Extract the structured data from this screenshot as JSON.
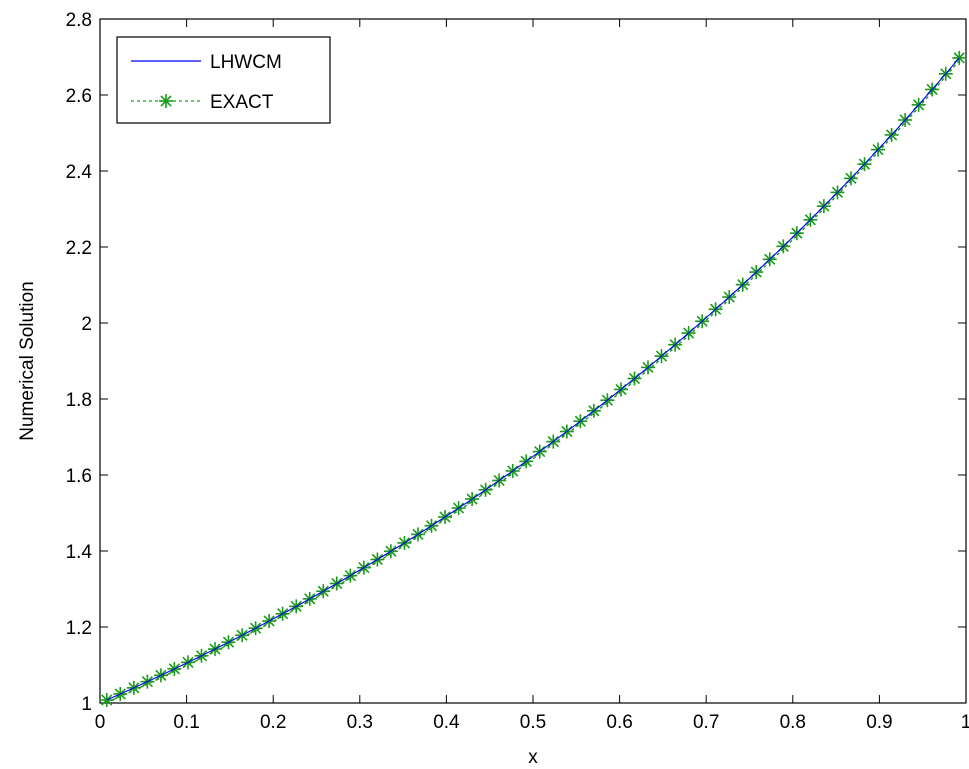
{
  "chart_data": {
    "type": "line",
    "xlabel": "x",
    "ylabel": "Numerical Solution",
    "xlim": [
      0,
      1
    ],
    "ylim": [
      1,
      2.8
    ],
    "xticks": [
      0,
      0.1,
      0.2,
      0.3,
      0.4,
      0.5,
      0.6,
      0.7,
      0.8,
      0.9,
      1
    ],
    "xtick_labels": [
      "0",
      "0.1",
      "0.2",
      "0.3",
      "0.4",
      "0.5",
      "0.6",
      "0.7",
      "0.8",
      "0.9",
      "1"
    ],
    "yticks": [
      1,
      1.2,
      1.4,
      1.6,
      1.8,
      2,
      2.2,
      2.4,
      2.6,
      2.8
    ],
    "ytick_labels": [
      "1",
      "1.2",
      "1.4",
      "1.6",
      "1.8",
      "2",
      "2.2",
      "2.4",
      "2.6",
      "2.8"
    ],
    "grid": false,
    "legend_position": "top-left",
    "series": [
      {
        "name": "LHWCM",
        "style": "line",
        "color": "#0000ff",
        "x": [
          0.0078,
          0.0234,
          0.0391,
          0.0547,
          0.0703,
          0.0859,
          0.1016,
          0.1172,
          0.1328,
          0.1484,
          0.1641,
          0.1797,
          0.1953,
          0.2109,
          0.2266,
          0.2422,
          0.2578,
          0.2734,
          0.2891,
          0.3047,
          0.3203,
          0.3359,
          0.3516,
          0.3672,
          0.3828,
          0.3984,
          0.4141,
          0.4297,
          0.4453,
          0.4609,
          0.4766,
          0.4922,
          0.5078,
          0.5234,
          0.5391,
          0.5547,
          0.5703,
          0.5859,
          0.6016,
          0.6172,
          0.6328,
          0.6484,
          0.6641,
          0.6797,
          0.6953,
          0.7109,
          0.7266,
          0.7422,
          0.7578,
          0.7734,
          0.7891,
          0.8047,
          0.8203,
          0.8359,
          0.8516,
          0.8672,
          0.8828,
          0.8984,
          0.9141,
          0.9297,
          0.9453,
          0.9609,
          0.9766,
          0.9922
        ],
        "y": [
          1.0078,
          1.0237,
          1.0398,
          1.0562,
          1.0728,
          1.0898,
          1.1069,
          1.1243,
          1.142,
          1.16,
          1.1783,
          1.1968,
          1.2157,
          1.2348,
          1.2543,
          1.274,
          1.2941,
          1.3145,
          1.3352,
          1.3562,
          1.3776,
          1.3993,
          1.4213,
          1.4437,
          1.4664,
          1.4895,
          1.513,
          1.5368,
          1.561,
          1.5856,
          1.6106,
          1.6359,
          1.6617,
          1.6879,
          1.7145,
          1.7415,
          1.769,
          1.7968,
          1.8251,
          1.8539,
          1.8831,
          1.9128,
          1.9429,
          1.9735,
          2.0046,
          2.0362,
          2.0683,
          2.1009,
          2.134,
          2.1676,
          2.2017,
          2.2364,
          2.2716,
          2.3074,
          2.3437,
          2.3806,
          2.4181,
          2.4562,
          2.4949,
          2.5342,
          2.5741,
          2.6146,
          2.6558,
          2.6976
        ]
      },
      {
        "name": "EXACT",
        "style": "dashed-star",
        "color": "#1a9a1a",
        "x": [
          0.0078,
          0.0234,
          0.0391,
          0.0547,
          0.0703,
          0.0859,
          0.1016,
          0.1172,
          0.1328,
          0.1484,
          0.1641,
          0.1797,
          0.1953,
          0.2109,
          0.2266,
          0.2422,
          0.2578,
          0.2734,
          0.2891,
          0.3047,
          0.3203,
          0.3359,
          0.3516,
          0.3672,
          0.3828,
          0.3984,
          0.4141,
          0.4297,
          0.4453,
          0.4609,
          0.4766,
          0.4922,
          0.5078,
          0.5234,
          0.5391,
          0.5547,
          0.5703,
          0.5859,
          0.6016,
          0.6172,
          0.6328,
          0.6484,
          0.6641,
          0.6797,
          0.6953,
          0.7109,
          0.7266,
          0.7422,
          0.7578,
          0.7734,
          0.7891,
          0.8047,
          0.8203,
          0.8359,
          0.8516,
          0.8672,
          0.8828,
          0.8984,
          0.9141,
          0.9297,
          0.9453,
          0.9609,
          0.9766,
          0.9922
        ],
        "y": [
          1.0078,
          1.0237,
          1.0398,
          1.0562,
          1.0728,
          1.0898,
          1.1069,
          1.1243,
          1.142,
          1.16,
          1.1783,
          1.1968,
          1.2157,
          1.2348,
          1.2543,
          1.274,
          1.2941,
          1.3145,
          1.3352,
          1.3562,
          1.3776,
          1.3993,
          1.4213,
          1.4437,
          1.4664,
          1.4895,
          1.513,
          1.5368,
          1.561,
          1.5856,
          1.6106,
          1.6359,
          1.6617,
          1.6879,
          1.7145,
          1.7415,
          1.769,
          1.7968,
          1.8251,
          1.8539,
          1.8831,
          1.9128,
          1.9429,
          1.9735,
          2.0046,
          2.0362,
          2.0683,
          2.1009,
          2.134,
          2.1676,
          2.2017,
          2.2364,
          2.2716,
          2.3074,
          2.3437,
          2.3806,
          2.4181,
          2.4562,
          2.4949,
          2.5342,
          2.5741,
          2.6146,
          2.6558,
          2.6976
        ]
      }
    ]
  }
}
